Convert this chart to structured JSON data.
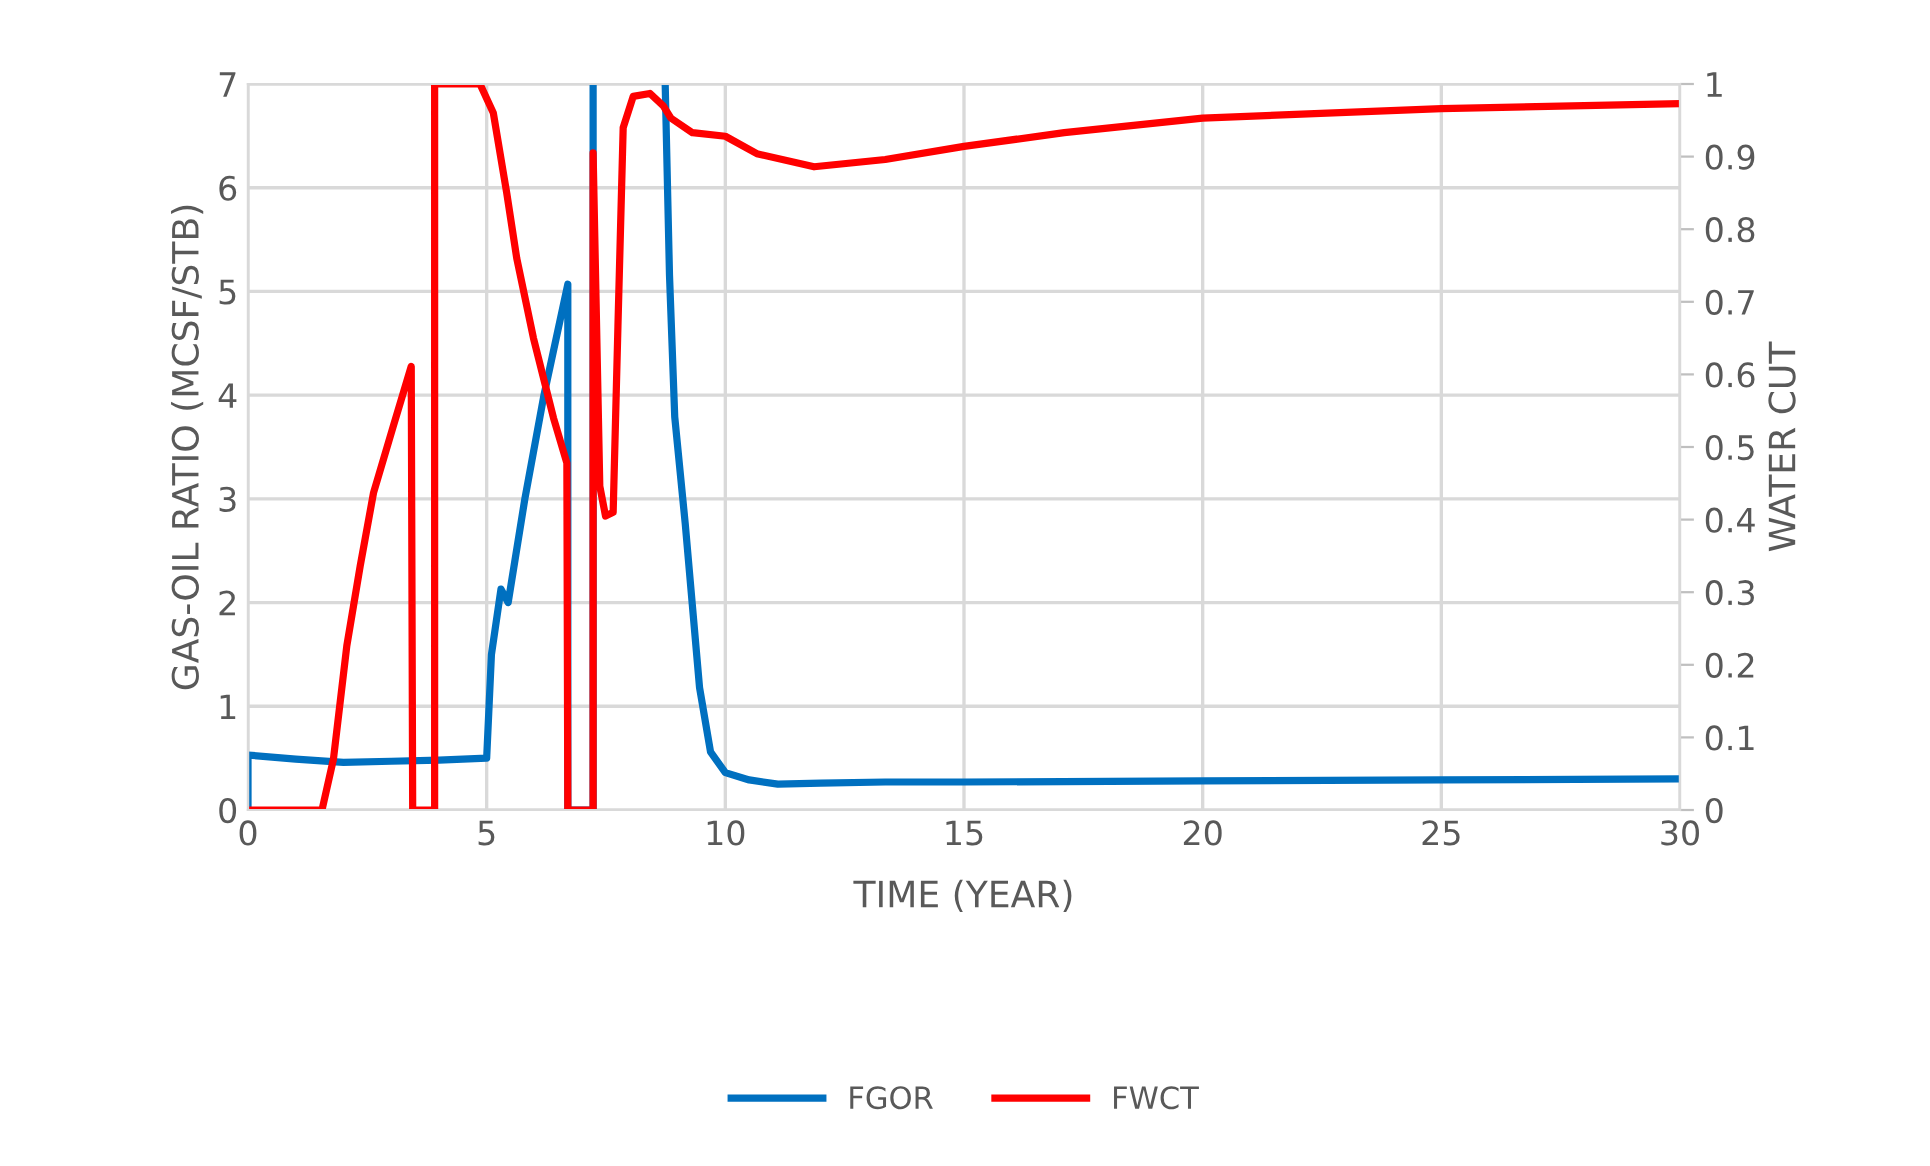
{
  "chart_data": {
    "type": "line",
    "xlabel": "TIME (YEAR)",
    "ylabel": "GAS-OIL RATIO (MCSF/STB)",
    "y2label": "WATER CUT",
    "xlim": [
      0,
      30
    ],
    "xticks": [
      0,
      5,
      10,
      15,
      20,
      25,
      30
    ],
    "ylim": [
      0,
      7
    ],
    "yticks": [
      0,
      1,
      2,
      3,
      4,
      5,
      6,
      7
    ],
    "y2lim": [
      0,
      1
    ],
    "y2ticks": [
      0,
      0.1,
      0.2,
      0.3,
      0.4,
      0.5,
      0.6,
      0.7,
      0.8,
      0.9,
      1
    ],
    "grid": true,
    "legend": "bottom",
    "marker": "none",
    "line_style": "solid",
    "series": [
      {
        "name": "FGOR",
        "color": "#0070c0",
        "x": [
          0,
          0,
          1,
          2,
          3,
          4,
          5.0,
          5.1,
          5.3,
          5.45,
          5.8,
          6.2,
          6.7,
          6.7,
          7.23,
          7.23,
          7.25,
          8.74,
          8.83,
          8.94,
          9.16,
          9.46,
          9.69,
          10.0,
          10.5,
          11.1,
          12,
          13.35,
          15,
          20,
          25,
          30
        ],
        "values": [
          0,
          0.53,
          0.49,
          0.46,
          0.47,
          0.48,
          0.5,
          1.5,
          2.13,
          2.0,
          3.0,
          4.0,
          5.07,
          0,
          0,
          7,
          null,
          7,
          5.16,
          3.79,
          2.76,
          1.18,
          0.56,
          0.36,
          0.29,
          0.25,
          0.26,
          0.27,
          0.27,
          0.28,
          0.29,
          0.3
        ]
      },
      {
        "name": "FWCT",
        "color": "#ff0000",
        "axis": "y2",
        "x": [
          0,
          1.55,
          1.79,
          2.07,
          2.35,
          2.63,
          3.04,
          3.42,
          3.45,
          3.91,
          3.91,
          4.86,
          5.14,
          5.42,
          5.63,
          5.98,
          6.4,
          6.68,
          6.7,
          7.23,
          7.23,
          7.37,
          7.49,
          7.65,
          7.75,
          7.86,
          8.07,
          8.42,
          8.7,
          8.86,
          9.31,
          10.0,
          10.66,
          11.86,
          13.35,
          15.0,
          17.1,
          20.0,
          25.0,
          30
        ],
        "values": [
          0,
          0,
          0.07,
          0.226,
          0.336,
          0.437,
          0.528,
          0.611,
          0,
          0,
          1.0,
          1.0,
          0.96,
          0.85,
          0.76,
          0.65,
          0.54,
          0.478,
          0,
          0,
          0.905,
          0.446,
          0.405,
          0.41,
          0.666,
          0.94,
          0.983,
          0.987,
          0.97,
          0.953,
          0.933,
          0.928,
          0.904,
          0.886,
          0.896,
          0.914,
          0.933,
          0.953,
          0.966,
          0.973
        ]
      }
    ]
  }
}
